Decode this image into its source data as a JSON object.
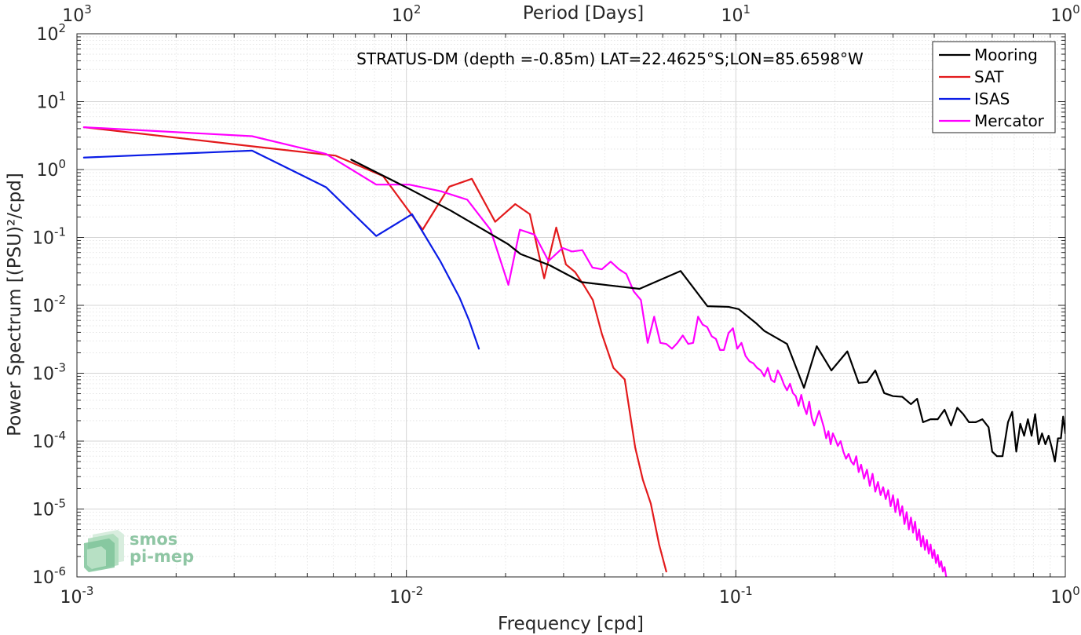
{
  "chart_data": {
    "type": "line",
    "title": "STRATUS-DM (depth =-0.85m) LAT=22.4625°S;LON=85.6598°W",
    "xlabel": "Frequency [cpd]",
    "ylabel": "Power Spectrum [(PSU)²/cpd]",
    "top_xlabel": "Period [Days]",
    "xscale": "log",
    "yscale": "log",
    "xlim": [
      0.001,
      1
    ],
    "ylim": [
      1e-06,
      100
    ],
    "top_xlim": [
      1000,
      1
    ],
    "grid": true,
    "legend_position": "top-right",
    "x_ticks": [
      {
        "value": 0.001,
        "base": "10",
        "exp": "-3"
      },
      {
        "value": 0.01,
        "base": "10",
        "exp": "-2"
      },
      {
        "value": 0.1,
        "base": "10",
        "exp": "-1"
      },
      {
        "value": 1,
        "base": "10",
        "exp": "0"
      }
    ],
    "y_ticks": [
      {
        "value": 1e-06,
        "base": "10",
        "exp": "-6"
      },
      {
        "value": 1e-05,
        "base": "10",
        "exp": "-5"
      },
      {
        "value": 0.0001,
        "base": "10",
        "exp": "-4"
      },
      {
        "value": 0.001,
        "base": "10",
        "exp": "-3"
      },
      {
        "value": 0.01,
        "base": "10",
        "exp": "-2"
      },
      {
        "value": 0.1,
        "base": "10",
        "exp": "-1"
      },
      {
        "value": 1,
        "base": "10",
        "exp": "0"
      },
      {
        "value": 10,
        "base": "10",
        "exp": "1"
      },
      {
        "value": 100,
        "base": "10",
        "exp": "2"
      }
    ],
    "top_ticks": [
      {
        "value": 1000,
        "base": "10",
        "exp": "3"
      },
      {
        "value": 100,
        "base": "10",
        "exp": "2"
      },
      {
        "value": 10,
        "base": "10",
        "exp": "1"
      },
      {
        "value": 1,
        "base": "10",
        "exp": "0"
      }
    ],
    "series": [
      {
        "name": "Mooring",
        "color": "#000000",
        "points": [
          [
            0.0068,
            1.4
          ],
          [
            0.0102,
            0.52
          ],
          [
            0.0136,
            0.25
          ],
          [
            0.017,
            0.133
          ],
          [
            0.0204,
            0.079
          ],
          [
            0.0222,
            0.057
          ],
          [
            0.0272,
            0.039
          ],
          [
            0.034,
            0.022
          ],
          [
            0.0408,
            0.0198
          ],
          [
            0.051,
            0.0175
          ],
          [
            0.068,
            0.032
          ],
          [
            0.082,
            0.0097
          ],
          [
            0.095,
            0.0095
          ],
          [
            0.102,
            0.0088
          ],
          [
            0.115,
            0.0055
          ],
          [
            0.122,
            0.0042
          ],
          [
            0.143,
            0.0027
          ],
          [
            0.161,
            0.00061
          ],
          [
            0.176,
            0.0025
          ],
          [
            0.195,
            0.0011
          ],
          [
            0.218,
            0.0021
          ],
          [
            0.236,
            0.00072
          ],
          [
            0.25,
            0.00074
          ],
          [
            0.265,
            0.0011
          ],
          [
            0.282,
            0.00051
          ],
          [
            0.3,
            0.00046
          ],
          [
            0.32,
            0.00045
          ],
          [
            0.34,
            0.00035
          ],
          [
            0.355,
            0.00042
          ],
          [
            0.37,
            0.00019
          ],
          [
            0.39,
            0.00021
          ],
          [
            0.41,
            0.00021
          ],
          [
            0.43,
            0.00029
          ],
          [
            0.45,
            0.00017
          ],
          [
            0.47,
            0.00031
          ],
          [
            0.49,
            0.00025
          ],
          [
            0.51,
            0.00019
          ],
          [
            0.535,
            0.00019
          ],
          [
            0.56,
            0.00021
          ],
          [
            0.585,
            0.00016
          ],
          [
            0.6,
            7e-05
          ],
          [
            0.62,
            6e-05
          ],
          [
            0.645,
            6e-05
          ],
          [
            0.67,
            0.00019
          ],
          [
            0.69,
            0.00027
          ],
          [
            0.71,
            7e-05
          ],
          [
            0.73,
            0.00018
          ],
          [
            0.75,
            0.00012
          ],
          [
            0.77,
            0.00021
          ],
          [
            0.79,
            0.00012
          ],
          [
            0.81,
            0.00025
          ],
          [
            0.83,
            9e-05
          ],
          [
            0.85,
            0.00013
          ],
          [
            0.87,
            9e-05
          ],
          [
            0.89,
            0.00012
          ],
          [
            0.91,
            8e-05
          ],
          [
            0.93,
            5e-05
          ],
          [
            0.95,
            0.00011
          ],
          [
            0.97,
            0.00011
          ],
          [
            0.985,
            0.00023
          ],
          [
            1.0,
            0.00013
          ]
        ]
      },
      {
        "name": "SAT",
        "color": "#e31a1c",
        "points": [
          [
            0.00105,
            4.2
          ],
          [
            0.0034,
            2.2
          ],
          [
            0.0061,
            1.6
          ],
          [
            0.0085,
            0.8
          ],
          [
            0.0112,
            0.13
          ],
          [
            0.0135,
            0.56
          ],
          [
            0.0158,
            0.73
          ],
          [
            0.0186,
            0.17
          ],
          [
            0.0214,
            0.31
          ],
          [
            0.0237,
            0.22
          ],
          [
            0.0262,
            0.025
          ],
          [
            0.0285,
            0.14
          ],
          [
            0.0305,
            0.04
          ],
          [
            0.0325,
            0.031
          ],
          [
            0.0345,
            0.02
          ],
          [
            0.0368,
            0.012
          ],
          [
            0.0392,
            0.0038
          ],
          [
            0.0425,
            0.0012
          ],
          [
            0.046,
            0.00081
          ],
          [
            0.0495,
            8e-05
          ],
          [
            0.0522,
            2.7e-05
          ],
          [
            0.0552,
            1.2e-05
          ],
          [
            0.0585,
            3e-06
          ],
          [
            0.0615,
            1.2e-06
          ]
        ]
      },
      {
        "name": "ISAS",
        "color": "#0a1ce6",
        "points": [
          [
            0.00105,
            1.5
          ],
          [
            0.0034,
            1.9
          ],
          [
            0.0057,
            0.55
          ],
          [
            0.0081,
            0.105
          ],
          [
            0.0104,
            0.22
          ],
          [
            0.0127,
            0.044
          ],
          [
            0.0145,
            0.013
          ],
          [
            0.0155,
            0.006
          ],
          [
            0.0166,
            0.0023
          ]
        ]
      },
      {
        "name": "Mercator",
        "color": "#ff00ff",
        "points": [
          [
            0.00105,
            4.2
          ],
          [
            0.0034,
            3.1
          ],
          [
            0.0057,
            1.7
          ],
          [
            0.0081,
            0.6
          ],
          [
            0.0102,
            0.6
          ],
          [
            0.0127,
            0.48
          ],
          [
            0.0153,
            0.36
          ],
          [
            0.018,
            0.13
          ],
          [
            0.0204,
            0.02
          ],
          [
            0.0221,
            0.13
          ],
          [
            0.0245,
            0.11
          ],
          [
            0.027,
            0.045
          ],
          [
            0.0298,
            0.07
          ],
          [
            0.0318,
            0.062
          ],
          [
            0.0342,
            0.065
          ],
          [
            0.0367,
            0.036
          ],
          [
            0.0392,
            0.034
          ],
          [
            0.0417,
            0.044
          ],
          [
            0.0442,
            0.034
          ],
          [
            0.0465,
            0.029
          ],
          [
            0.049,
            0.016
          ],
          [
            0.0515,
            0.012
          ],
          [
            0.054,
            0.0028
          ],
          [
            0.0565,
            0.0068
          ],
          [
            0.059,
            0.0028
          ],
          [
            0.0615,
            0.0027
          ],
          [
            0.064,
            0.0023
          ],
          [
            0.0665,
            0.0028
          ],
          [
            0.069,
            0.0036
          ],
          [
            0.0717,
            0.0027
          ],
          [
            0.0742,
            0.0028
          ],
          [
            0.0768,
            0.0068
          ],
          [
            0.0793,
            0.0052
          ],
          [
            0.0818,
            0.0048
          ],
          [
            0.0845,
            0.0035
          ],
          [
            0.087,
            0.0032
          ],
          [
            0.0895,
            0.0022
          ],
          [
            0.092,
            0.0022
          ],
          [
            0.095,
            0.0039
          ],
          [
            0.098,
            0.0046
          ],
          [
            0.101,
            0.0023
          ],
          [
            0.104,
            0.0028
          ],
          [
            0.107,
            0.0018
          ],
          [
            0.11,
            0.0015
          ],
          [
            0.113,
            0.0014
          ],
          [
            0.116,
            0.0012
          ],
          [
            0.119,
            0.0011
          ],
          [
            0.122,
            0.0009
          ],
          [
            0.125,
            0.0012
          ],
          [
            0.128,
            0.0008
          ],
          [
            0.131,
            0.00074
          ],
          [
            0.134,
            0.0011
          ],
          [
            0.137,
            0.0009
          ],
          [
            0.14,
            0.00068
          ],
          [
            0.143,
            0.00056
          ],
          [
            0.146,
            0.0007
          ],
          [
            0.149,
            0.00051
          ],
          [
            0.152,
            0.00046
          ],
          [
            0.155,
            0.00033
          ],
          [
            0.158,
            0.00048
          ],
          [
            0.161,
            0.00032
          ],
          [
            0.164,
            0.00025
          ],
          [
            0.167,
            0.00038
          ],
          [
            0.17,
            0.00022
          ],
          [
            0.173,
            0.00017
          ],
          [
            0.176,
            0.00022
          ],
          [
            0.179,
            0.00028
          ],
          [
            0.182,
            0.00021
          ],
          [
            0.185,
            0.00016
          ],
          [
            0.188,
            0.00011
          ],
          [
            0.191,
            0.00014
          ],
          [
            0.194,
            9e-05
          ],
          [
            0.197,
            0.00013
          ],
          [
            0.2,
            0.00011
          ],
          [
            0.204,
            8.5e-05
          ],
          [
            0.208,
            0.0001
          ],
          [
            0.212,
            7e-05
          ],
          [
            0.216,
            5.5e-05
          ],
          [
            0.22,
            6.5e-05
          ],
          [
            0.224,
            5e-05
          ],
          [
            0.228,
            4.5e-05
          ],
          [
            0.232,
            6e-05
          ],
          [
            0.236,
            3.5e-05
          ],
          [
            0.24,
            4.5e-05
          ],
          [
            0.245,
            2.8e-05
          ],
          [
            0.25,
            3.8e-05
          ],
          [
            0.255,
            2.2e-05
          ],
          [
            0.26,
            3.3e-05
          ],
          [
            0.265,
            1.8e-05
          ],
          [
            0.27,
            2.5e-05
          ],
          [
            0.275,
            1.6e-05
          ],
          [
            0.28,
            2.1e-05
          ],
          [
            0.285,
            1.4e-05
          ],
          [
            0.29,
            1.9e-05
          ],
          [
            0.295,
            1.1e-05
          ],
          [
            0.3,
            1.6e-05
          ],
          [
            0.305,
            9e-06
          ],
          [
            0.31,
            1.4e-05
          ],
          [
            0.315,
            8e-06
          ],
          [
            0.32,
            1.1e-05
          ],
          [
            0.325,
            6e-06
          ],
          [
            0.33,
            9e-06
          ],
          [
            0.335,
            5e-06
          ],
          [
            0.34,
            7.5e-06
          ],
          [
            0.345,
            4.5e-06
          ],
          [
            0.35,
            6.5e-06
          ],
          [
            0.355,
            3.5e-06
          ],
          [
            0.36,
            5e-06
          ],
          [
            0.365,
            2.8e-06
          ],
          [
            0.37,
            4e-06
          ],
          [
            0.375,
            2.5e-06
          ],
          [
            0.38,
            3.5e-06
          ],
          [
            0.385,
            2.2e-06
          ],
          [
            0.39,
            3e-06
          ],
          [
            0.395,
            1.9e-06
          ],
          [
            0.4,
            2.5e-06
          ],
          [
            0.405,
            1.6e-06
          ],
          [
            0.41,
            2.1e-06
          ],
          [
            0.415,
            1.4e-06
          ],
          [
            0.42,
            1.7e-06
          ],
          [
            0.425,
            1.2e-06
          ],
          [
            0.43,
            1.4e-06
          ],
          [
            0.435,
            1e-06
          ]
        ]
      }
    ]
  },
  "logo": {
    "line1": "smos",
    "line2": "pi-mep"
  }
}
